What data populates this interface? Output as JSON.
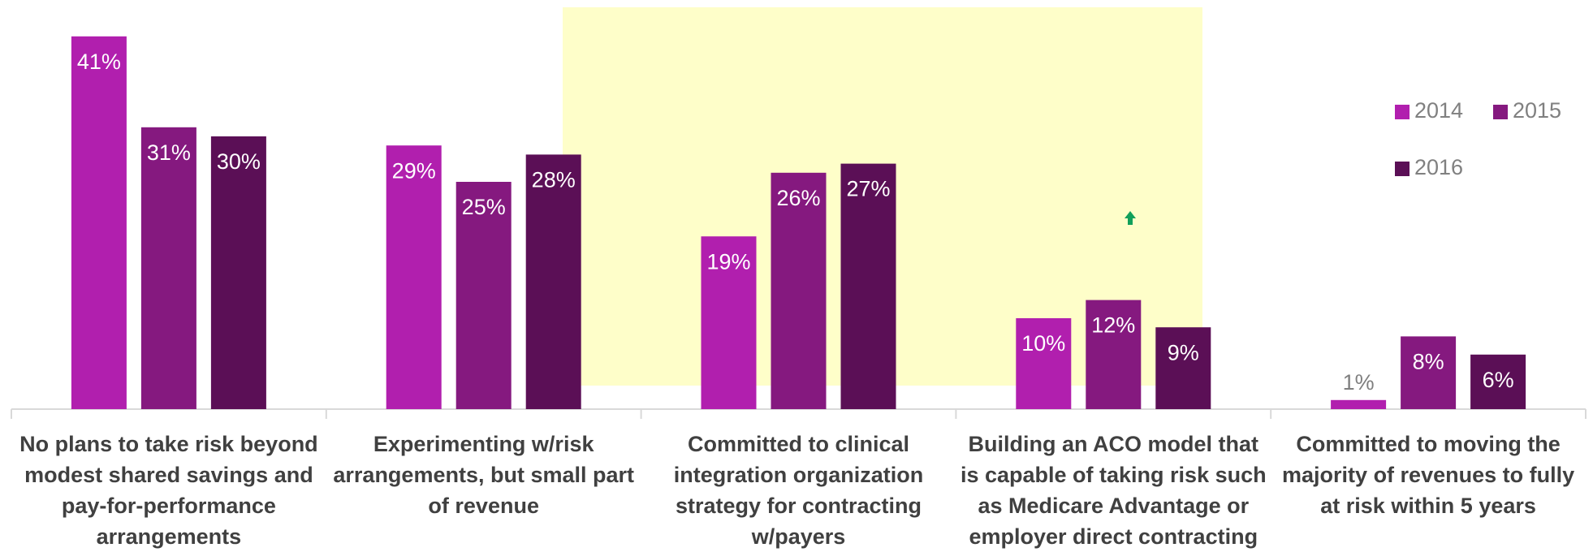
{
  "chart_data": {
    "type": "bar",
    "categories": [
      "No plans to take risk beyond modest shared savings and pay-for-performance arrangements",
      "Experimenting w/risk arrangements, but small part of revenue",
      "Committed to clinical integration organization strategy for contracting w/payers",
      "Building an ACO model that is capable of taking risk such as Medicare Advantage or employer direct contracting",
      "Committed to moving the majority of revenues to fully at risk within 5 years"
    ],
    "series": [
      {
        "name": "2014",
        "color": "#b11fae",
        "values": [
          41,
          29,
          19,
          10,
          1
        ],
        "value_labels": [
          "41%",
          "29%",
          "19%",
          "10%",
          "1%"
        ]
      },
      {
        "name": "2015",
        "color": "#85197f",
        "values": [
          31,
          25,
          26,
          12,
          8
        ],
        "value_labels": [
          "31%",
          "25%",
          "26%",
          "12%",
          "8%"
        ]
      },
      {
        "name": "2016",
        "color": "#5b0f56",
        "values": [
          30,
          28,
          27,
          9,
          6
        ],
        "value_labels": [
          "30%",
          "28%",
          "27%",
          "9%",
          "6%"
        ]
      }
    ],
    "ylim": [
      0,
      45
    ],
    "legend": "right"
  }
}
